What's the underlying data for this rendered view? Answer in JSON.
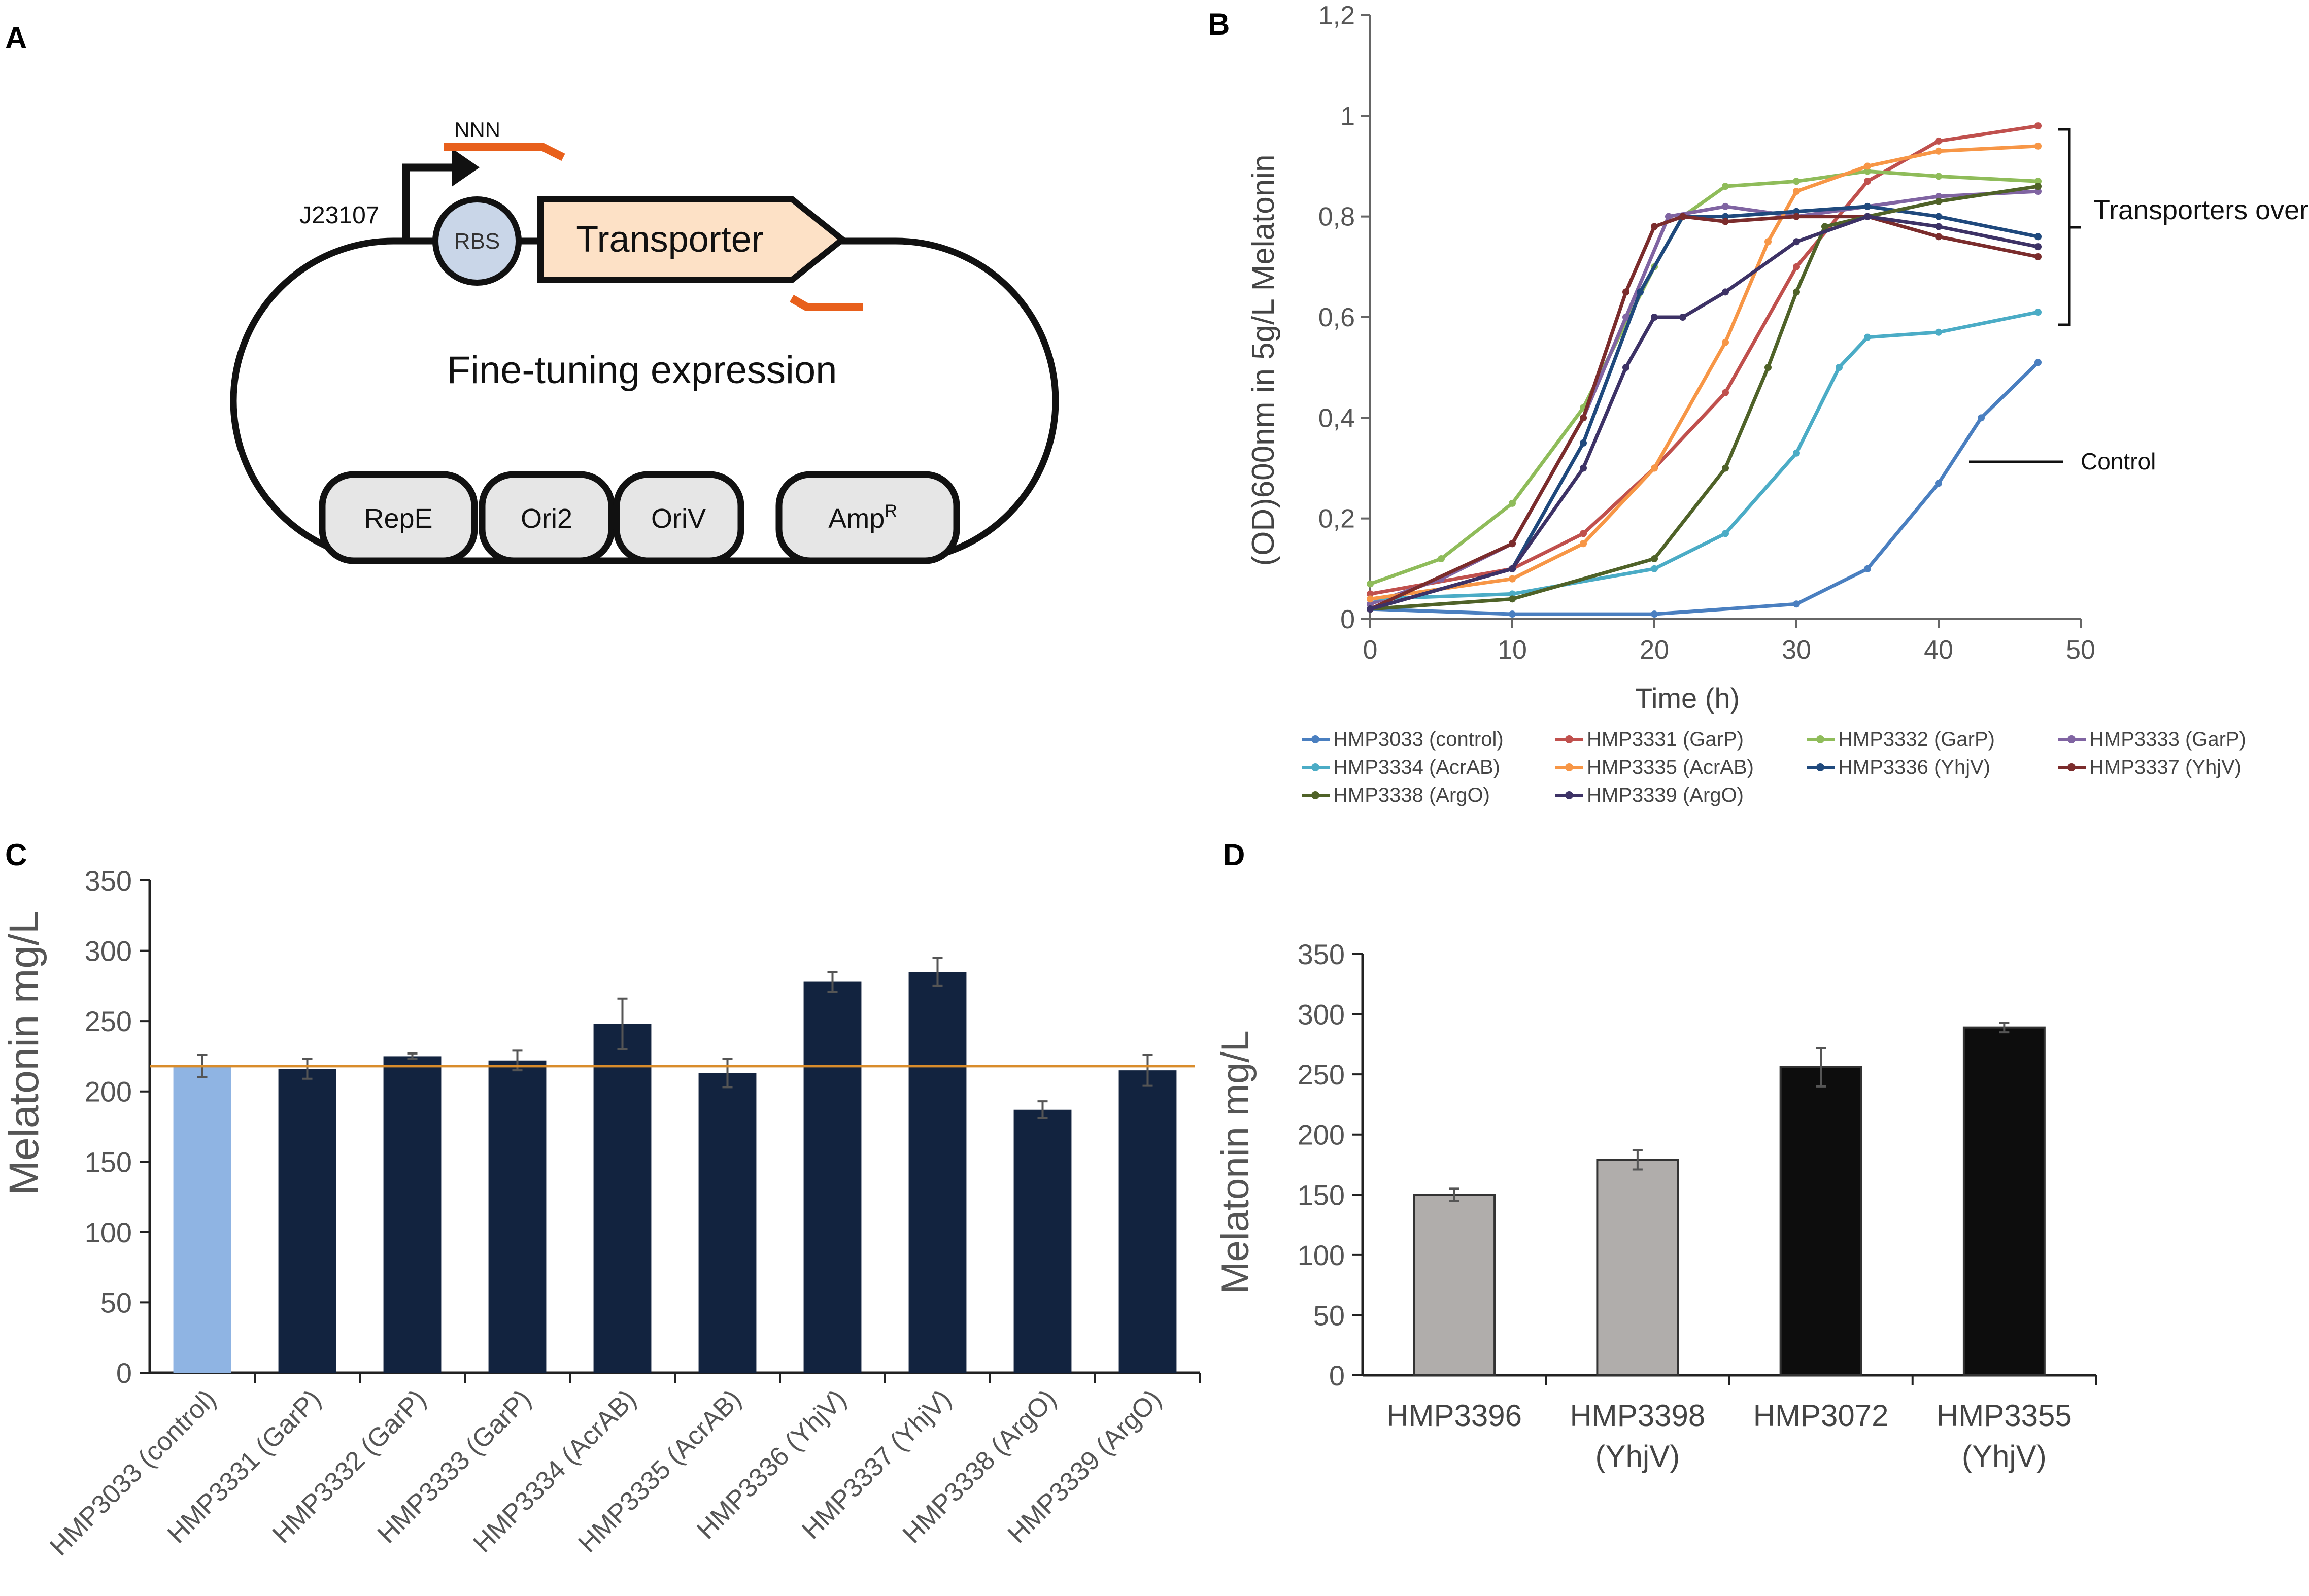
{
  "panels": {
    "a": {
      "letter": "A"
    },
    "b": {
      "letter": "B"
    },
    "c": {
      "letter": "C"
    },
    "d": {
      "letter": "D"
    }
  },
  "plasmid": {
    "promoter": "J23107",
    "primer": "NNN",
    "rbs": "RBS",
    "gene": "Transporter",
    "caption": "Fine-tuning expression",
    "elements": [
      "RepE",
      "Ori2",
      "OriV",
      "Amp"
    ],
    "amp_superscript": "R",
    "colors": {
      "primer": "#e8601c",
      "rbs": "#c9d6e8",
      "gene": "#fde1c6",
      "element": "#e6e6e6"
    }
  },
  "chart_data": [
    {
      "panel": "B",
      "type": "line",
      "xlabel": "Time (h)",
      "ylabel": "(OD)600nm in 5g/L Melatonin",
      "xlim": [
        0,
        50
      ],
      "ylim": [
        0,
        1.2
      ],
      "xticks": [
        0,
        10,
        20,
        30,
        40,
        50
      ],
      "yticks": [
        "0",
        "0,2",
        "0,4",
        "0,6",
        "0,8",
        "1",
        "1,2"
      ],
      "annotations": {
        "bracket": "Transporters overexpression",
        "control": "Control"
      },
      "series": [
        {
          "name": "HMP3033 (control)",
          "color": "#4a7fc0",
          "x": [
            0,
            10,
            20,
            30,
            35,
            40,
            43,
            47
          ],
          "y": [
            0.02,
            0.01,
            0.01,
            0.03,
            0.1,
            0.27,
            0.4,
            0.51
          ]
        },
        {
          "name": "HMP3331 (GarP)",
          "color": "#c0504d",
          "x": [
            0,
            10,
            15,
            20,
            25,
            30,
            35,
            40,
            47
          ],
          "y": [
            0.05,
            0.1,
            0.17,
            0.3,
            0.45,
            0.7,
            0.87,
            0.95,
            0.98
          ]
        },
        {
          "name": "HMP3332 (GarP)",
          "color": "#8fbc5a",
          "x": [
            0,
            5,
            10,
            15,
            20,
            22,
            25,
            30,
            35,
            40,
            47
          ],
          "y": [
            0.07,
            0.12,
            0.23,
            0.42,
            0.7,
            0.8,
            0.86,
            0.87,
            0.89,
            0.88,
            0.87
          ]
        },
        {
          "name": "HMP3333 (GarP)",
          "color": "#8064a2",
          "x": [
            0,
            5,
            10,
            15,
            18,
            21,
            25,
            30,
            35,
            40,
            47
          ],
          "y": [
            0.03,
            0.08,
            0.15,
            0.4,
            0.6,
            0.8,
            0.82,
            0.8,
            0.82,
            0.84,
            0.85
          ]
        },
        {
          "name": "HMP3334 (AcrAB)",
          "color": "#4bacc6",
          "x": [
            0,
            10,
            20,
            25,
            30,
            33,
            35,
            40,
            47
          ],
          "y": [
            0.04,
            0.05,
            0.1,
            0.17,
            0.33,
            0.5,
            0.56,
            0.57,
            0.61
          ]
        },
        {
          "name": "HMP3335 (AcrAB)",
          "color": "#f79646",
          "x": [
            0,
            10,
            15,
            20,
            25,
            28,
            30,
            35,
            40,
            47
          ],
          "y": [
            0.04,
            0.08,
            0.15,
            0.3,
            0.55,
            0.75,
            0.85,
            0.9,
            0.93,
            0.94
          ]
        },
        {
          "name": "HMP3336 (YhjV)",
          "color": "#1f497d",
          "x": [
            0,
            10,
            15,
            19,
            22,
            25,
            30,
            35,
            40,
            47
          ],
          "y": [
            0.02,
            0.1,
            0.35,
            0.65,
            0.8,
            0.8,
            0.81,
            0.82,
            0.8,
            0.76
          ]
        },
        {
          "name": "HMP3337 (YhjV)",
          "color": "#7b2c2c",
          "x": [
            0,
            10,
            15,
            18,
            20,
            22,
            25,
            30,
            35,
            40,
            47
          ],
          "y": [
            0.02,
            0.15,
            0.4,
            0.65,
            0.78,
            0.8,
            0.79,
            0.8,
            0.8,
            0.76,
            0.72
          ]
        },
        {
          "name": "HMP3338 (ArgO)",
          "color": "#4f6228",
          "x": [
            0,
            10,
            20,
            25,
            28,
            30,
            32,
            35,
            40,
            47
          ],
          "y": [
            0.02,
            0.04,
            0.12,
            0.3,
            0.5,
            0.65,
            0.78,
            0.8,
            0.83,
            0.86
          ]
        },
        {
          "name": "HMP3339 (ArgO)",
          "color": "#3d3266",
          "x": [
            0,
            10,
            15,
            18,
            20,
            22,
            25,
            30,
            35,
            40,
            47
          ],
          "y": [
            0.02,
            0.1,
            0.3,
            0.5,
            0.6,
            0.6,
            0.65,
            0.75,
            0.8,
            0.78,
            0.74
          ]
        }
      ]
    },
    {
      "panel": "C",
      "type": "bar",
      "ylabel": "Melatonin mg/L",
      "ylim": [
        0,
        350
      ],
      "yticks": [
        0,
        50,
        100,
        150,
        200,
        250,
        300,
        350
      ],
      "reference_line": 218,
      "reference_color": "#d98c2b",
      "categories": [
        "HMP3033 (control)",
        "HMP3331 (GarP)",
        "HMP3332 (GarP)",
        "HMP3333 (GarP)",
        "HMP3334 (AcrAB)",
        "HMP3335 (AcrAB)",
        "HMP3336 (YhjV)",
        "HMP3337 (YhjV)",
        "HMP3338 (ArgO)",
        "HMP3339 (ArgO)"
      ],
      "values": [
        218,
        216,
        225,
        222,
        248,
        213,
        278,
        285,
        187,
        215
      ],
      "errors": [
        8,
        7,
        2,
        7,
        18,
        10,
        7,
        10,
        6,
        11
      ],
      "colors": [
        "#8fb4e3",
        "#12233f",
        "#12233f",
        "#12233f",
        "#12233f",
        "#12233f",
        "#12233f",
        "#12233f",
        "#12233f",
        "#12233f"
      ]
    },
    {
      "panel": "D",
      "type": "bar",
      "ylabel": "Melatonin mg/L",
      "ylim": [
        0,
        350
      ],
      "yticks": [
        0,
        50,
        100,
        150,
        200,
        250,
        300,
        350
      ],
      "categories": [
        "HMP3396",
        "HMP3398",
        "HMP3072",
        "HMP3355"
      ],
      "subcategories": [
        "",
        "(YhjV)",
        "",
        "(YhjV)"
      ],
      "values": [
        150,
        179,
        256,
        289
      ],
      "errors": [
        5,
        8,
        16,
        4
      ],
      "colors": [
        "#b0adab",
        "#b0adab",
        "#0d0d0d",
        "#0d0d0d"
      ]
    }
  ]
}
